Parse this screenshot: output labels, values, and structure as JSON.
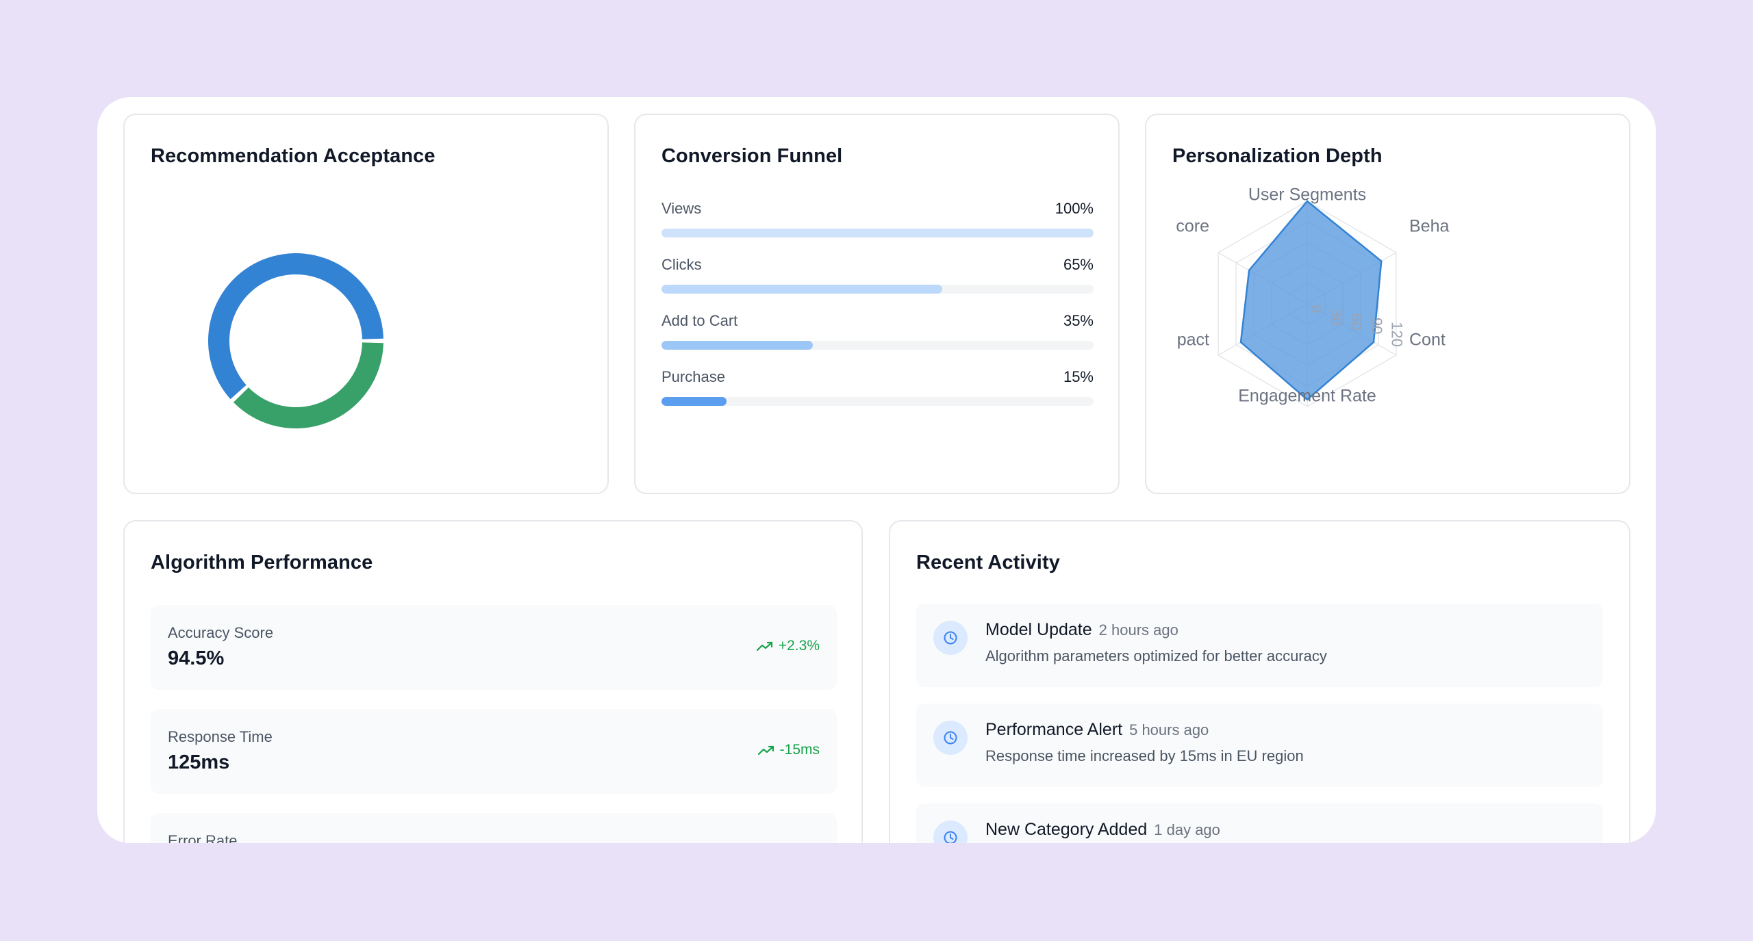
{
  "colors": {
    "background": "#e8e1f8",
    "primary_blue": "#3383d4",
    "success_green": "#38a169",
    "funnel_light": "#cfe2fb",
    "funnel_mid": "#9cc6f6",
    "funnel_strong": "#5b9ef0",
    "radar_fill": "#5b9be0"
  },
  "acceptance": {
    "title": "Recommendation Acceptance",
    "chart_data": {
      "type": "pie",
      "style": "donut",
      "slices": [
        {
          "value": 62,
          "color": "#3383d4"
        },
        {
          "value": 38,
          "color": "#38a169"
        }
      ]
    }
  },
  "funnel": {
    "title": "Conversion Funnel",
    "stages": [
      {
        "label": "Views",
        "value_text": "100%",
        "value": 100,
        "color": "#cfe2fb"
      },
      {
        "label": "Clicks",
        "value_text": "65%",
        "value": 65,
        "color": "#bcd8fa"
      },
      {
        "label": "Add to Cart",
        "value_text": "35%",
        "value": 35,
        "color": "#9cc6f6"
      },
      {
        "label": "Purchase",
        "value_text": "15%",
        "value": 15,
        "color": "#5b9ef0"
      }
    ]
  },
  "depth": {
    "title": "Personalization Depth",
    "chart_data": {
      "type": "radar",
      "axes": [
        "User Segments",
        "Beha",
        "Cont",
        "Engagement Rate",
        "pact",
        "core"
      ],
      "ticks": [
        "0",
        "30",
        "60",
        "90",
        "120"
      ],
      "range": [
        0,
        150
      ],
      "values": [
        150,
        125,
        112,
        140,
        112,
        98
      ]
    }
  },
  "algorithm": {
    "title": "Algorithm Performance",
    "metrics": [
      {
        "label": "Accuracy Score",
        "value": "94.5%",
        "change": "+2.3%"
      },
      {
        "label": "Response Time",
        "value": "125ms",
        "change": "-15ms"
      },
      {
        "label": "Error Rate",
        "value": "",
        "change": ""
      }
    ]
  },
  "activity": {
    "title": "Recent Activity",
    "items": [
      {
        "title": "Model Update",
        "time": "2 hours ago",
        "desc": "Algorithm parameters optimized for better accuracy"
      },
      {
        "title": "Performance Alert",
        "time": "5 hours ago",
        "desc": "Response time increased by 15ms in EU region"
      },
      {
        "title": "New Category Added",
        "time": "1 day ago",
        "desc": ""
      }
    ]
  }
}
